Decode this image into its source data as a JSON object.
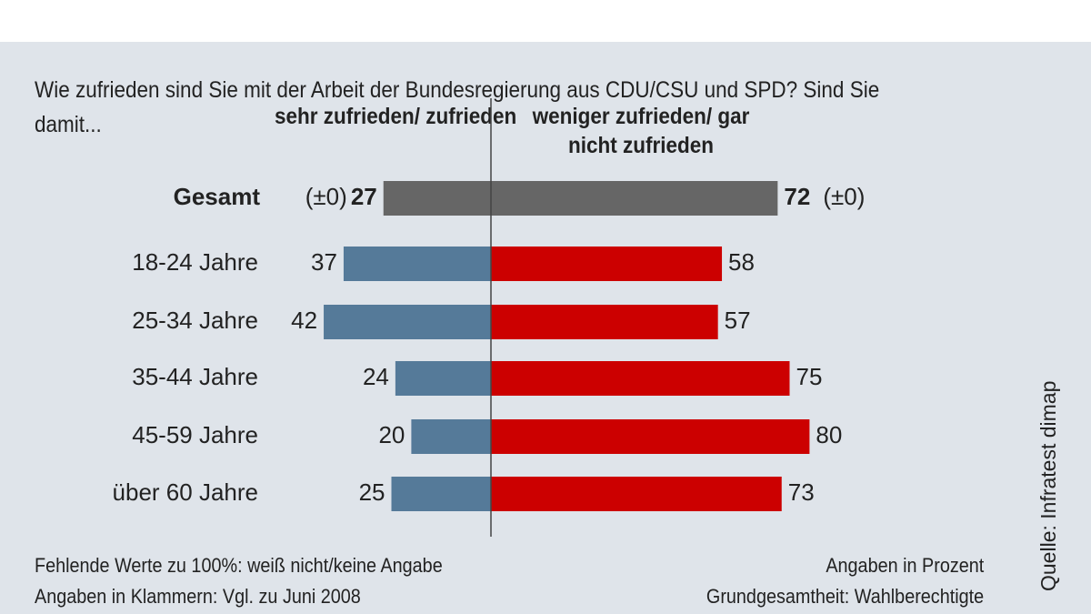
{
  "question": "Wie zufrieden sind Sie mit der Arbeit der Bundesregierung aus CDU/CSU und SPD? Sind Sie damit...",
  "chart_data": {
    "type": "bar",
    "orientation": "horizontal-diverging",
    "legend_left": "sehr zufrieden/ zufrieden",
    "legend_right": "weniger zufrieden/ gar nicht zufrieden",
    "categories": [
      "Gesamt",
      "18-24 Jahre",
      "25-34 Jahre",
      "35-44 Jahre",
      "45-59 Jahre",
      "über 60 Jahre"
    ],
    "series": [
      {
        "name": "sehr zufrieden/ zufrieden",
        "values": [
          27,
          37,
          42,
          24,
          20,
          25
        ],
        "color": "#557a99",
        "total_color": "#666666"
      },
      {
        "name": "weniger zufrieden/ gar nicht zufrieden",
        "values": [
          72,
          58,
          57,
          75,
          80,
          73
        ],
        "color": "#cc0000",
        "total_color": "#666666"
      }
    ],
    "changes": {
      "left": "(±0)",
      "right": "(±0)"
    }
  },
  "footer": {
    "note1": "Fehlende Werte zu 100%: weiß nicht/keine Angabe",
    "note2": "Angaben in Klammern: Vgl. zu Juni 2008",
    "unit": "Angaben in Prozent",
    "base": "Grundgesamtheit: Wahlberechtigte",
    "source": "Quelle: Infratest dimap"
  }
}
